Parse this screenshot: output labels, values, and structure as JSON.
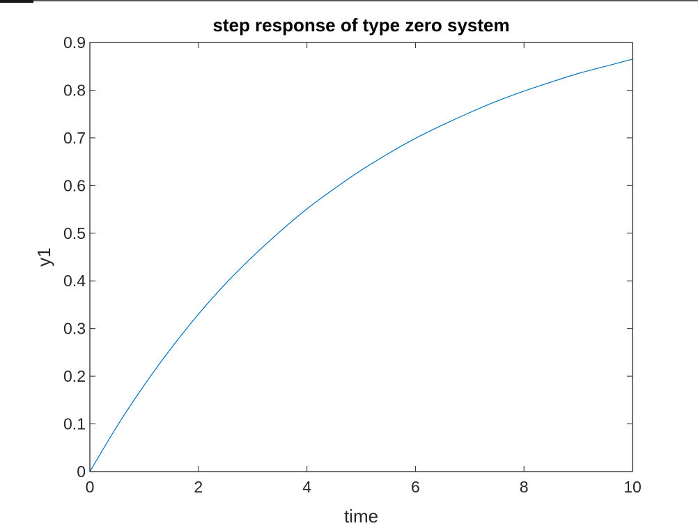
{
  "chart_data": {
    "type": "line",
    "title": "step response of type zero system",
    "xlabel": "time",
    "ylabel": "y1",
    "xlim": [
      0,
      10
    ],
    "ylim": [
      0,
      0.9
    ],
    "xticks": [
      0,
      2,
      4,
      6,
      8,
      10
    ],
    "xtick_labels": [
      "0",
      "2",
      "4",
      "6",
      "8",
      "10"
    ],
    "yticks": [
      0,
      0.1,
      0.2,
      0.3,
      0.4,
      0.5,
      0.6,
      0.7,
      0.8,
      0.9
    ],
    "ytick_labels": [
      "0",
      "0.1",
      "0.2",
      "0.3",
      "0.4",
      "0.5",
      "0.6",
      "0.7",
      "0.8",
      "0.9"
    ],
    "grid": false,
    "line_color": "#0072bd",
    "series": [
      {
        "x": [
          0,
          0.5,
          1,
          1.5,
          2,
          2.5,
          3,
          3.5,
          4,
          4.5,
          5,
          5.5,
          6,
          6.5,
          7,
          7.5,
          8,
          8.5,
          9,
          9.5,
          10
        ],
        "values": [
          0,
          0.095,
          0.181,
          0.259,
          0.33,
          0.394,
          0.451,
          0.503,
          0.551,
          0.593,
          0.632,
          0.667,
          0.699,
          0.727,
          0.753,
          0.777,
          0.798,
          0.817,
          0.835,
          0.85,
          0.865
        ]
      }
    ]
  }
}
